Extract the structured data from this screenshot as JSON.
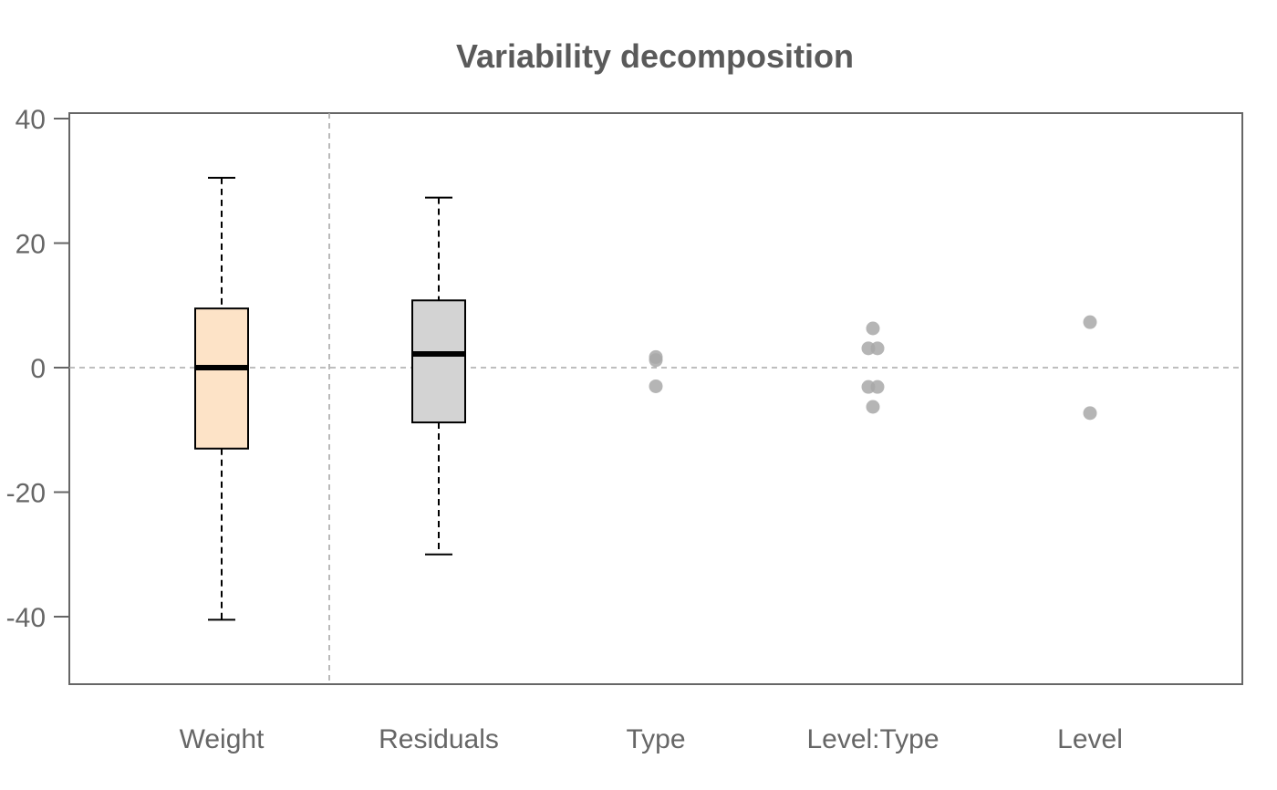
{
  "chart_data": {
    "type": "box",
    "title": "Variability decomposition",
    "xlabel": "",
    "ylabel": "",
    "ylim": [
      -51,
      40
    ],
    "yticks": [
      40,
      20,
      0,
      -20,
      -40
    ],
    "ytick_labels": [
      "40",
      "20",
      "0",
      "-20",
      "-40"
    ],
    "categories": [
      "Weight",
      "Residuals",
      "Type",
      "Level:Type",
      "Level"
    ],
    "boxes": [
      {
        "category": "Weight",
        "min": -40.5,
        "q1": -13,
        "median": 0,
        "q3": 9.5,
        "max": 30.5,
        "fill": "#fde3c7"
      },
      {
        "category": "Residuals",
        "min": -30,
        "q1": -8.8,
        "median": 2.2,
        "q3": 10.8,
        "max": 27.3,
        "fill": "#d3d3d3"
      }
    ],
    "points": [
      {
        "category": "Type",
        "values": [
          1.7,
          1.2,
          -3.0
        ],
        "color": "#a8a8a8"
      },
      {
        "category": "Level:Type",
        "values": [
          6.3,
          3.1,
          3.1,
          -3.1,
          -3.1,
          -6.3
        ],
        "color": "#a8a8a8"
      },
      {
        "category": "Level",
        "values": [
          7.3,
          -7.3
        ],
        "color": "#a8a8a8"
      }
    ],
    "reference_line": {
      "y": 0,
      "style": "dashed",
      "color": "#a8a8a8"
    },
    "separator_after_category": "Weight",
    "grid": false
  }
}
